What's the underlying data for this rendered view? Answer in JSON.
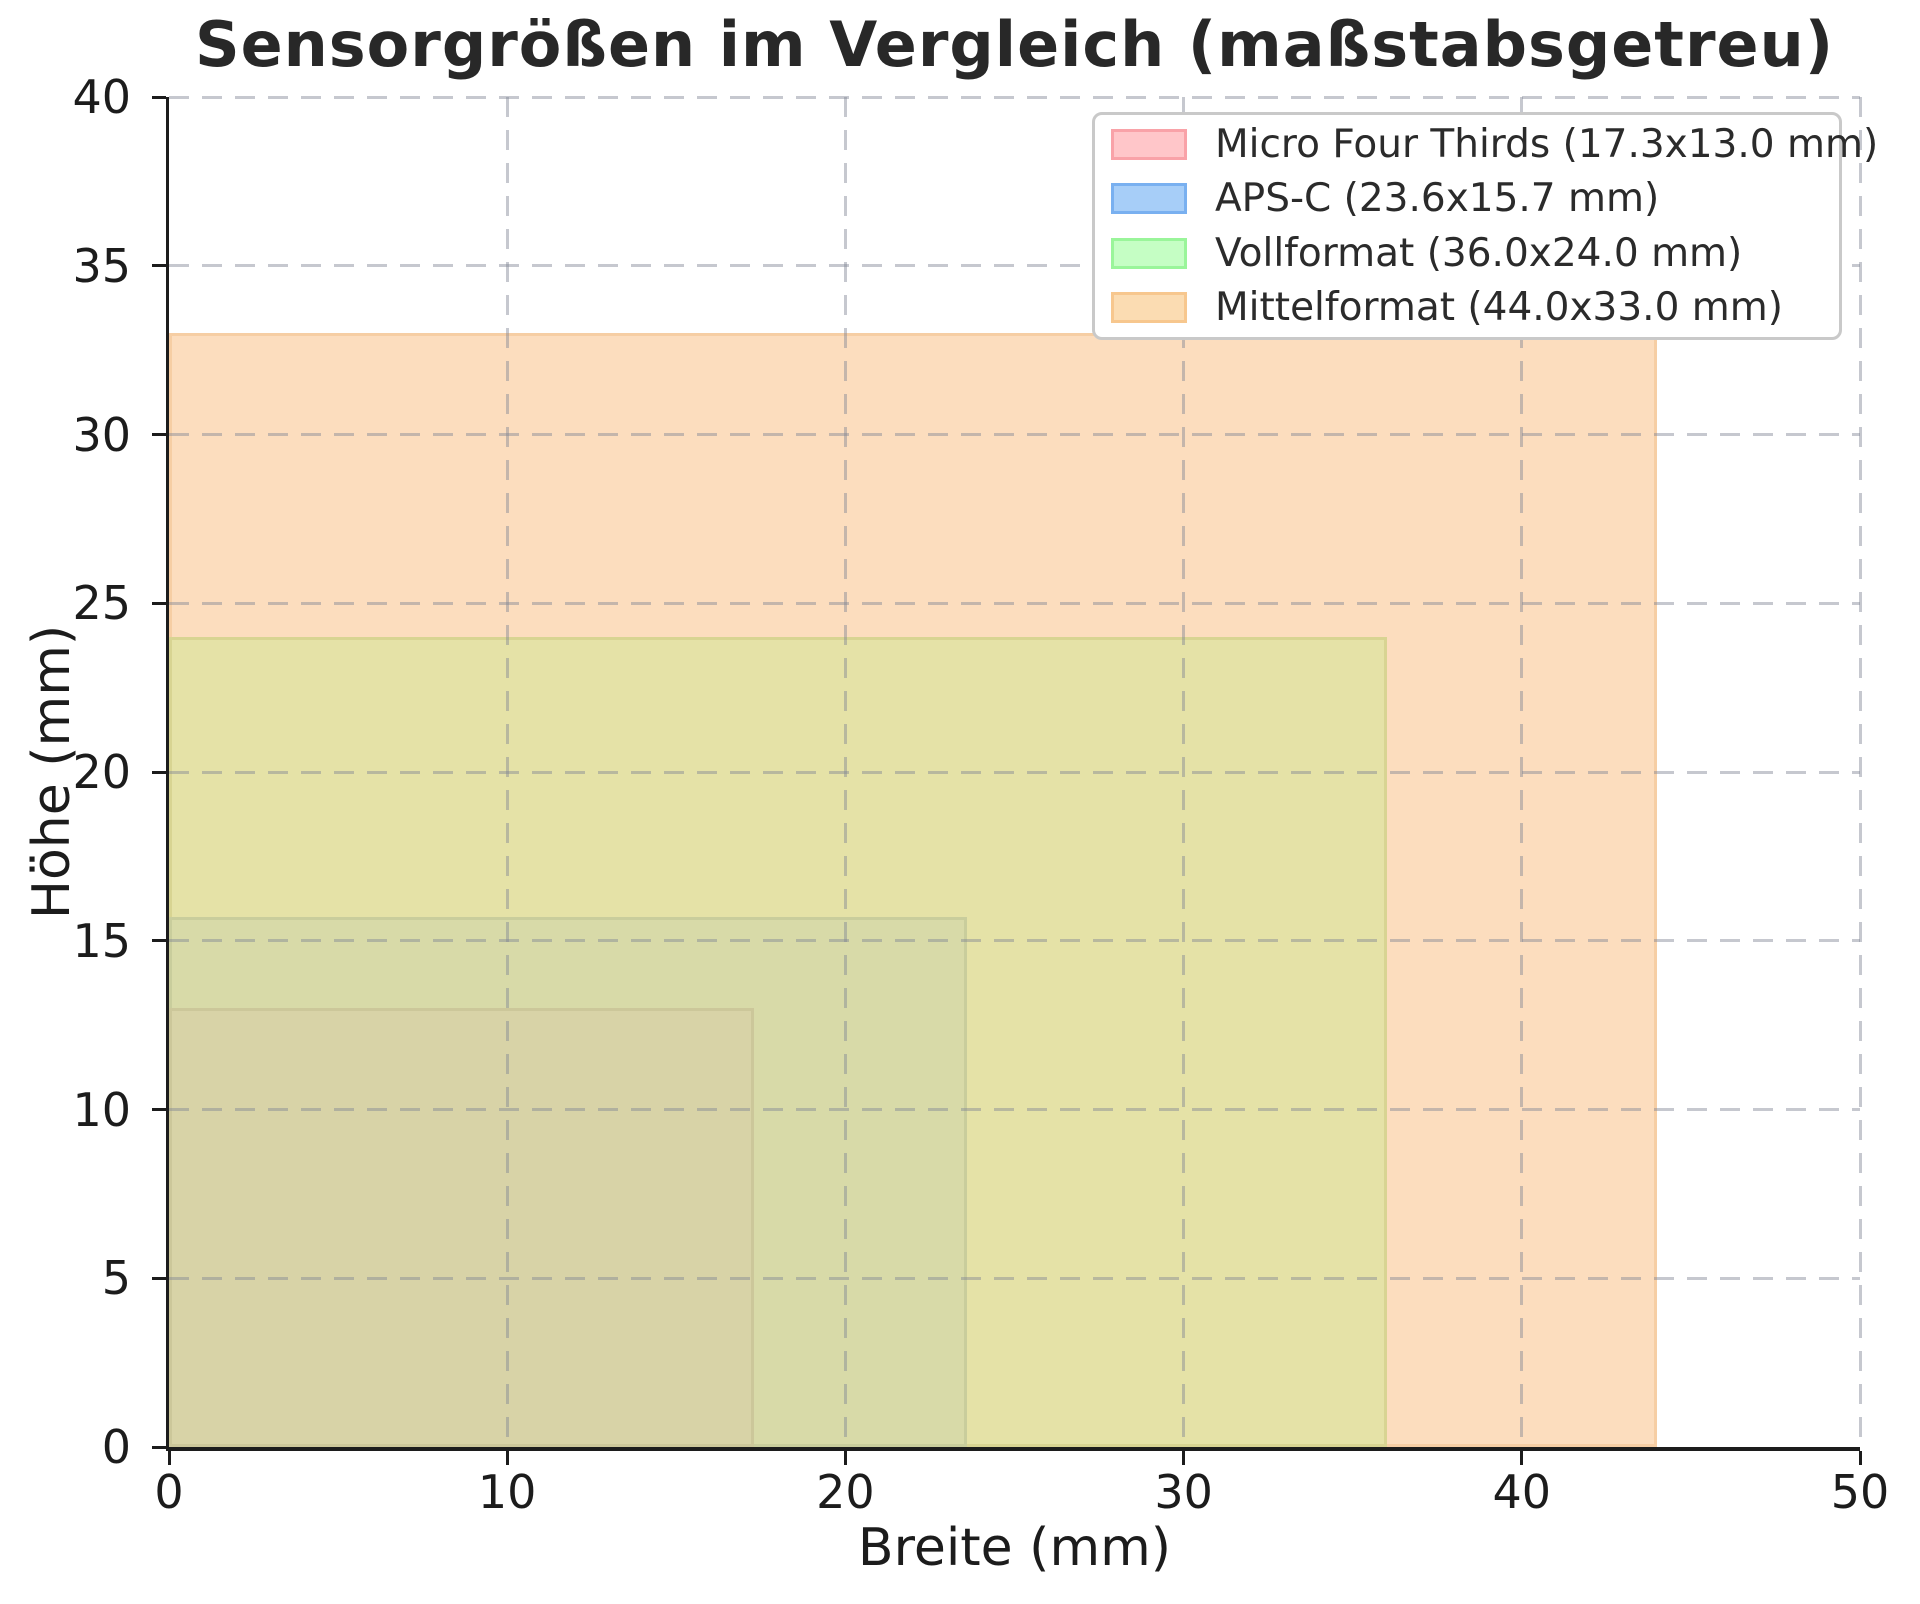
{
  "title": {
    "text": "Sensorgrößen im Vergleich (maßstabsgetreu)",
    "color": "#282828"
  },
  "axes": {
    "xlabel": "Breite (mm)",
    "ylabel": "Höhe (mm)",
    "xlim": [
      0,
      50
    ],
    "ylim": [
      0,
      40
    ],
    "xticks": [
      0,
      10,
      20,
      30,
      40,
      50
    ],
    "yticks": [
      0,
      5,
      10,
      15,
      20,
      25,
      30,
      35,
      40
    ],
    "spine_color": "#1c1c1c",
    "grid_style": "dashed"
  },
  "chart_data": {
    "type": "area",
    "subtype": "nested-scaled-rectangles",
    "title": "Sensorgrößen im Vergleich (maßstabsgetreu)",
    "xlabel": "Breite (mm)",
    "ylabel": "Höhe (mm)",
    "xlim": [
      0,
      50
    ],
    "ylim": [
      0,
      40
    ],
    "grid": true,
    "legend_position": "upper right",
    "series": [
      {
        "name": "Micro Four Thirds",
        "width_mm": 17.3,
        "height_mm": 13.0,
        "legend_label": "Micro Four Thirds (17.3x13.0 mm)",
        "swatch_fill": "#FFC6C9",
        "swatch_edge": "#F9A2A8",
        "plot_fill": "#D8D3A7",
        "plot_edge": "#CCC79A"
      },
      {
        "name": "APS-C",
        "width_mm": 23.6,
        "height_mm": 15.7,
        "legend_label": "APS-C (23.6x15.7 mm)",
        "swatch_fill": "#A7CEF8",
        "swatch_edge": "#79B0F0",
        "plot_fill": "#D8DAA8",
        "plot_edge": "#C9CD9C"
      },
      {
        "name": "Vollformat",
        "width_mm": 36.0,
        "height_mm": 24.0,
        "legend_label": "Vollformat (36.0x24.0 mm)",
        "swatch_fill": "#C5FEC4",
        "swatch_edge": "#9AF59A",
        "plot_fill": "#E5E2A7",
        "plot_edge": "#D8D492"
      },
      {
        "name": "Mittelformat",
        "width_mm": 44.0,
        "height_mm": 33.0,
        "legend_label": "Mittelformat (44.0x33.0 mm)",
        "swatch_fill": "#FBDCB2",
        "swatch_edge": "#F7C78E",
        "plot_fill": "#FCDDBE",
        "plot_edge": "#F6CEA4"
      }
    ]
  },
  "legend": {
    "background": "#ffffff",
    "border_color": "#c9c9c9"
  }
}
